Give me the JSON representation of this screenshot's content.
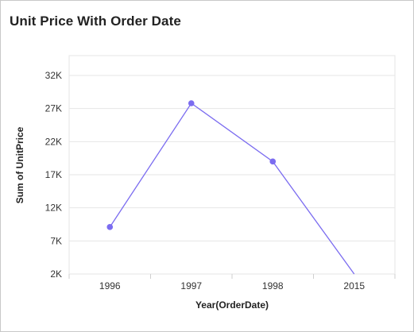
{
  "chart_data": {
    "type": "line",
    "title": "Unit Price With Order Date",
    "xlabel": "Year(OrderDate)",
    "ylabel": "Sum of UnitPrice",
    "categories": [
      "1996",
      "1997",
      "1998",
      "2015"
    ],
    "series": [
      {
        "values": [
          9100,
          27800,
          19000,
          2000
        ]
      }
    ],
    "ylim": [
      2000,
      35000
    ],
    "yticks": [
      2000,
      7000,
      12000,
      17000,
      22000,
      27000,
      32000
    ],
    "ytick_labels": [
      "2K",
      "7K",
      "12K",
      "17K",
      "22K",
      "27K",
      "32K"
    ],
    "grid": true,
    "line_color": "#7b6cf0",
    "marker_color": "#7b6cf0",
    "grid_color": "#e6e6e6"
  }
}
